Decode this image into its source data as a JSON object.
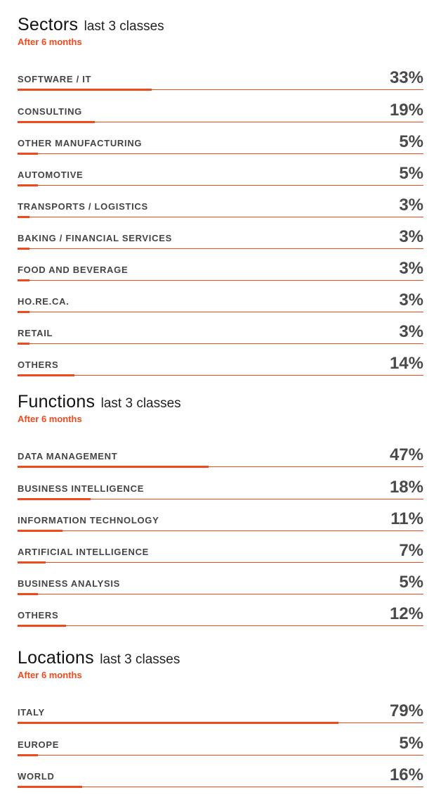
{
  "colors": {
    "accent": "#ee4a1c",
    "text": "#444444",
    "title": "#111111"
  },
  "sections": [
    {
      "title": "Sectors",
      "subtitle": "last 3 classes",
      "note": "After 6 months",
      "items": [
        {
          "label": "SOFTWARE / IT",
          "value": 33,
          "value_text": "33%"
        },
        {
          "label": "CONSULTING",
          "value": 19,
          "value_text": "19%"
        },
        {
          "label": "OTHER MANUFACTURING",
          "value": 5,
          "value_text": "5%"
        },
        {
          "label": "AUTOMOTIVE",
          "value": 5,
          "value_text": "5%"
        },
        {
          "label": "TRANSPORTS / LOGISTICS",
          "value": 3,
          "value_text": "3%"
        },
        {
          "label": "BAKING / FINANCIAL SERVICES",
          "value": 3,
          "value_text": "3%"
        },
        {
          "label": "FOOD AND BEVERAGE",
          "value": 3,
          "value_text": "3%"
        },
        {
          "label": "HO.RE.CA.",
          "value": 3,
          "value_text": "3%"
        },
        {
          "label": "RETAIL",
          "value": 3,
          "value_text": "3%"
        },
        {
          "label": "OTHERS",
          "value": 14,
          "value_text": "14%"
        }
      ]
    },
    {
      "title": "Functions",
      "subtitle": "last 3 classes",
      "note": "After 6 months",
      "items": [
        {
          "label": "DATA MANAGEMENT",
          "value": 47,
          "value_text": "47%"
        },
        {
          "label": "BUSINESS INTELLIGENCE",
          "value": 18,
          "value_text": "18%"
        },
        {
          "label": "INFORMATION TECHNOLOGY",
          "value": 11,
          "value_text": "11%"
        },
        {
          "label": "ARTIFICIAL INTELLIGENCE",
          "value": 7,
          "value_text": "7%"
        },
        {
          "label": "BUSINESS ANALYSIS",
          "value": 5,
          "value_text": "5%"
        },
        {
          "label": "OTHERS",
          "value": 12,
          "value_text": "12%"
        }
      ]
    },
    {
      "title": "Locations",
      "subtitle": "last 3 classes",
      "note": "After 6 months",
      "items": [
        {
          "label": "ITALY",
          "value": 79,
          "value_text": "79%"
        },
        {
          "label": "EUROPE",
          "value": 5,
          "value_text": "5%"
        },
        {
          "label": "WORLD",
          "value": 16,
          "value_text": "16%"
        }
      ]
    }
  ],
  "chart_data": [
    {
      "type": "bar",
      "title": "Sectors last 3 classes",
      "subtitle": "After 6 months",
      "categories": [
        "SOFTWARE / IT",
        "CONSULTING",
        "OTHER MANUFACTURING",
        "AUTOMOTIVE",
        "TRANSPORTS / LOGISTICS",
        "BAKING / FINANCIAL SERVICES",
        "FOOD AND BEVERAGE",
        "HO.RE.CA.",
        "RETAIL",
        "OTHERS"
      ],
      "values": [
        33,
        19,
        5,
        5,
        3,
        3,
        3,
        3,
        3,
        14
      ],
      "unit": "%",
      "xlim": [
        0,
        100
      ],
      "orientation": "horizontal"
    },
    {
      "type": "bar",
      "title": "Functions last 3 classes",
      "subtitle": "After 6 months",
      "categories": [
        "DATA MANAGEMENT",
        "BUSINESS INTELLIGENCE",
        "INFORMATION TECHNOLOGY",
        "ARTIFICIAL INTELLIGENCE",
        "BUSINESS ANALYSIS",
        "OTHERS"
      ],
      "values": [
        47,
        18,
        11,
        7,
        5,
        12
      ],
      "unit": "%",
      "xlim": [
        0,
        100
      ],
      "orientation": "horizontal"
    },
    {
      "type": "bar",
      "title": "Locations last 3 classes",
      "subtitle": "After 6 months",
      "categories": [
        "ITALY",
        "EUROPE",
        "WORLD"
      ],
      "values": [
        79,
        5,
        16
      ],
      "unit": "%",
      "xlim": [
        0,
        100
      ],
      "orientation": "horizontal"
    }
  ]
}
